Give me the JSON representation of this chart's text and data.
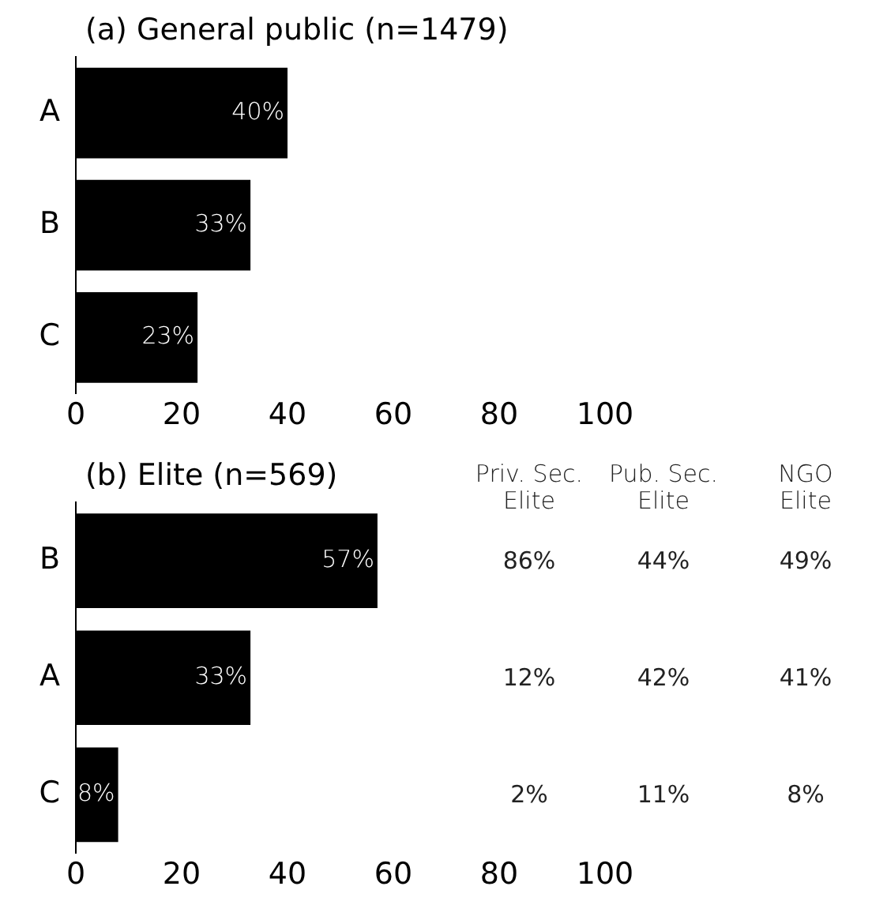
{
  "chart_data": [
    {
      "type": "bar",
      "orientation": "horizontal",
      "title": "(a) General public (n=1479)",
      "categories": [
        "A",
        "B",
        "C"
      ],
      "values": [
        40,
        33,
        23
      ],
      "color": "#000000",
      "value_labels": [
        "40%",
        "33%",
        "23%"
      ],
      "xlim": [
        0,
        100
      ],
      "xticks": [
        0,
        20,
        40,
        60,
        80,
        100
      ],
      "grid": false,
      "legend": false
    },
    {
      "type": "bar",
      "orientation": "horizontal",
      "title": "(b) Elite (n=569)",
      "categories": [
        "B",
        "A",
        "C"
      ],
      "values": [
        57,
        33,
        8
      ],
      "color": "#000000",
      "value_labels": [
        "57%",
        "33%",
        "8%"
      ],
      "xlim": [
        0,
        100
      ],
      "xticks": [
        0,
        20,
        40,
        60,
        80,
        100
      ],
      "grid": false,
      "legend": false
    },
    {
      "type": "other",
      "categories": [
        "Priv. Sec.\nElite",
        "Pub. Sec.\nElite",
        "NGO\nElite"
      ],
      "cell_labels": [
        [
          "86%",
          "44%",
          "49%"
        ],
        [
          "12%",
          "42%",
          "41%"
        ],
        [
          "2%",
          "11%",
          "8%"
        ]
      ]
    }
  ]
}
